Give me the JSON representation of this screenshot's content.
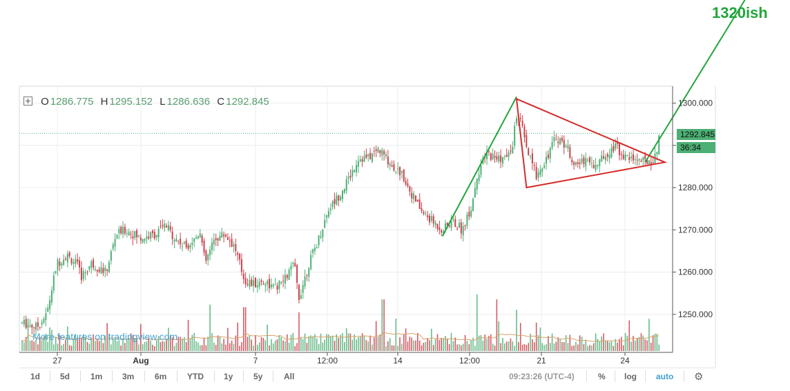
{
  "annotation": "1320ish",
  "watermark": "More features on tradingview.com",
  "ohlc": {
    "o_label": "O",
    "o_value": "1286.775",
    "h_label": "H",
    "h_value": "1295.152",
    "l_label": "L",
    "l_value": "1286.636",
    "c_label": "C",
    "c_value": "1292.845"
  },
  "price_tags": {
    "last_price": "1292.845",
    "countdown": "36:34"
  },
  "toolbar": {
    "periods": [
      "1d",
      "5d",
      "1m",
      "3m",
      "6m",
      "YTD",
      "1y",
      "5y",
      "All"
    ],
    "time": "09:23:26 (UTC-4)",
    "percent_label": "%",
    "log_label": "log",
    "auto_label": "auto",
    "settings_icon": "gear-icon"
  },
  "colors": {
    "up": "#4caf74",
    "down": "#c9404a",
    "trendline_green": "#22a53b",
    "triangle_red": "#d62a2a",
    "last_price_line": "#4caf74",
    "volume_ma": "#d9a066"
  },
  "chart_data": {
    "type": "candlestick",
    "x_tick_labels": [
      "27",
      "Aug",
      "7",
      "12:00",
      "14",
      "12:00",
      "21",
      "24"
    ],
    "y_tick_labels": [
      "1250.000",
      "1260.000",
      "1270.000",
      "1280.000",
      "1290.000",
      "1300.000"
    ],
    "ylim": [
      1241,
      1304
    ],
    "last_price": 1292.845,
    "ohlc_last": {
      "open": 1286.775,
      "high": 1295.152,
      "low": 1286.636,
      "close": 1292.845
    },
    "close_path": [
      {
        "x": 0,
        "y": 1248
      },
      {
        "x": 3,
        "y": 1247
      },
      {
        "x": 5,
        "y": 1250
      },
      {
        "x": 7,
        "y": 1262
      },
      {
        "x": 9,
        "y": 1264
      },
      {
        "x": 11,
        "y": 1262
      },
      {
        "x": 12,
        "y": 1259
      },
      {
        "x": 14,
        "y": 1262
      },
      {
        "x": 17,
        "y": 1260
      },
      {
        "x": 19,
        "y": 1269
      },
      {
        "x": 21,
        "y": 1270
      },
      {
        "x": 24,
        "y": 1268
      },
      {
        "x": 27,
        "y": 1269
      },
      {
        "x": 29,
        "y": 1271
      },
      {
        "x": 31,
        "y": 1268
      },
      {
        "x": 33,
        "y": 1266
      },
      {
        "x": 35,
        "y": 1268
      },
      {
        "x": 36,
        "y": 1270
      },
      {
        "x": 37,
        "y": 1262
      },
      {
        "x": 39,
        "y": 1268
      },
      {
        "x": 41,
        "y": 1269
      },
      {
        "x": 43,
        "y": 1266
      },
      {
        "x": 45,
        "y": 1258
      },
      {
        "x": 47,
        "y": 1257
      },
      {
        "x": 49,
        "y": 1258
      },
      {
        "x": 51,
        "y": 1256
      },
      {
        "x": 53,
        "y": 1258
      },
      {
        "x": 55,
        "y": 1262
      },
      {
        "x": 56,
        "y": 1254
      },
      {
        "x": 58,
        "y": 1262
      },
      {
        "x": 60,
        "y": 1268
      },
      {
        "x": 62,
        "y": 1275
      },
      {
        "x": 64,
        "y": 1278
      },
      {
        "x": 66,
        "y": 1282
      },
      {
        "x": 68,
        "y": 1287
      },
      {
        "x": 70,
        "y": 1287
      },
      {
        "x": 72,
        "y": 1289
      },
      {
        "x": 73,
        "y": 1288
      },
      {
        "x": 75,
        "y": 1285
      },
      {
        "x": 77,
        "y": 1283
      },
      {
        "x": 79,
        "y": 1278
      },
      {
        "x": 81,
        "y": 1274
      },
      {
        "x": 83,
        "y": 1272
      },
      {
        "x": 85,
        "y": 1270
      },
      {
        "x": 87,
        "y": 1272
      },
      {
        "x": 89,
        "y": 1270
      },
      {
        "x": 91,
        "y": 1276
      },
      {
        "x": 92,
        "y": 1283
      },
      {
        "x": 94,
        "y": 1288
      },
      {
        "x": 96,
        "y": 1287
      },
      {
        "x": 98,
        "y": 1287
      },
      {
        "x": 99,
        "y": 1289
      },
      {
        "x": 100,
        "y": 1297
      },
      {
        "x": 101,
        "y": 1295
      },
      {
        "x": 102,
        "y": 1289
      },
      {
        "x": 104,
        "y": 1283
      },
      {
        "x": 106,
        "y": 1287
      },
      {
        "x": 108,
        "y": 1292
      },
      {
        "x": 110,
        "y": 1290
      },
      {
        "x": 112,
        "y": 1285
      },
      {
        "x": 114,
        "y": 1287
      },
      {
        "x": 116,
        "y": 1285
      },
      {
        "x": 118,
        "y": 1288
      },
      {
        "x": 120,
        "y": 1290
      },
      {
        "x": 122,
        "y": 1287
      },
      {
        "x": 124,
        "y": 1287
      },
      {
        "x": 126,
        "y": 1286
      },
      {
        "x": 128,
        "y": 1287
      },
      {
        "x": 129,
        "y": 1292.845
      }
    ],
    "volume_spikes": [
      {
        "x": 38,
        "y": 0.9
      },
      {
        "x": 45,
        "y": 0.85
      },
      {
        "x": 56,
        "y": 0.75
      },
      {
        "x": 73,
        "y": 1.0
      },
      {
        "x": 92,
        "y": 1.1
      },
      {
        "x": 96,
        "y": 1.0
      },
      {
        "x": 100,
        "y": 0.8
      }
    ],
    "annotations": [
      {
        "type": "trendline",
        "color": "green",
        "from": {
          "x": 85,
          "y": 1268.5
        },
        "to": {
          "x": 100,
          "y": 1301.5
        }
      },
      {
        "type": "trendline",
        "color": "green",
        "from": {
          "x": 126,
          "y": 1286
        },
        "to": {
          "x": 147,
          "y": 1326
        },
        "label": "1320ish"
      },
      {
        "type": "triangle",
        "color": "red",
        "points": [
          {
            "x": 100,
            "y": 1301
          },
          {
            "x": 102,
            "y": 1280
          },
          {
            "x": 130,
            "y": 1286
          }
        ]
      }
    ]
  }
}
